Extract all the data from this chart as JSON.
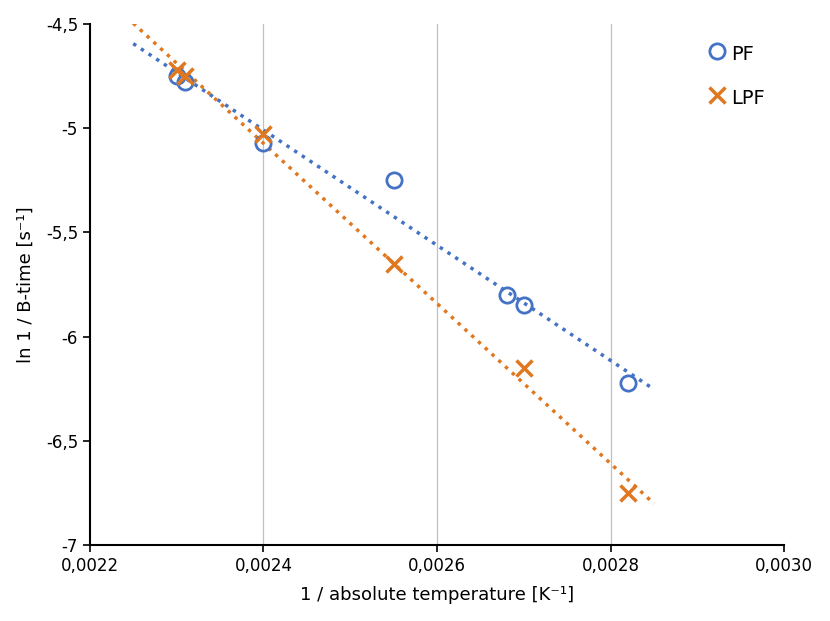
{
  "title": "",
  "xlabel": "1 / absolute temperature [K⁻¹]",
  "ylabel": "ln 1 / B-time [s⁻¹]",
  "xlim": [
    0.0022,
    0.003
  ],
  "ylim": [
    -7.0,
    -4.5
  ],
  "xticks": [
    0.0022,
    0.0024,
    0.0026,
    0.0028,
    0.003
  ],
  "yticks": [
    -7.0,
    -6.5,
    -6.0,
    -5.5,
    -5.0,
    -4.5
  ],
  "vlines": [
    0.0024,
    0.0026,
    0.0028
  ],
  "PF_x": [
    0.0023,
    0.00231,
    0.0024,
    0.00255,
    0.00268,
    0.0027,
    0.00282
  ],
  "PF_y": [
    -4.75,
    -4.78,
    -5.07,
    -5.25,
    -5.8,
    -5.85,
    -6.22
  ],
  "LPF_x": [
    0.0023,
    0.00231,
    0.0024,
    0.00255,
    0.0027,
    0.00282
  ],
  "LPF_y": [
    -4.72,
    -4.75,
    -5.03,
    -5.65,
    -6.15,
    -6.75
  ],
  "PF_color": "#4472c4",
  "LPF_color": "#e07820",
  "trend_x_start": 0.00225,
  "trend_x_end": 0.00285
}
